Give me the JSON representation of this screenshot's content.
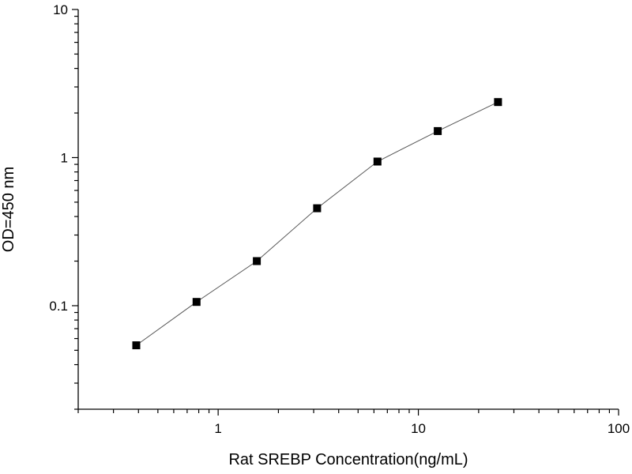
{
  "chart_data": {
    "type": "scatter",
    "title": "",
    "xlabel": "Rat SREBP Concentration(ng/mL)",
    "ylabel": "OD=450 nm",
    "x_scale": "log",
    "y_scale": "log",
    "xlim": [
      0.2,
      100
    ],
    "ylim": [
      0.02,
      10
    ],
    "x_ticks": [
      {
        "value": 1,
        "label": "1"
      },
      {
        "value": 10,
        "label": "10"
      },
      {
        "value": 100,
        "label": "100"
      }
    ],
    "y_ticks": [
      {
        "value": 0.1,
        "label": "0.1"
      },
      {
        "value": 1,
        "label": "1"
      },
      {
        "value": 10,
        "label": "10"
      }
    ],
    "grid": false,
    "legend": "none",
    "series": [
      {
        "x": [
          0.39,
          0.78,
          1.56,
          3.12,
          6.25,
          12.5,
          25
        ],
        "y": [
          0.054,
          0.106,
          0.2,
          0.455,
          0.94,
          1.51,
          2.37
        ],
        "marker": "square",
        "line": true,
        "marker_color": "#000000",
        "line_color": "#555555"
      }
    ]
  }
}
